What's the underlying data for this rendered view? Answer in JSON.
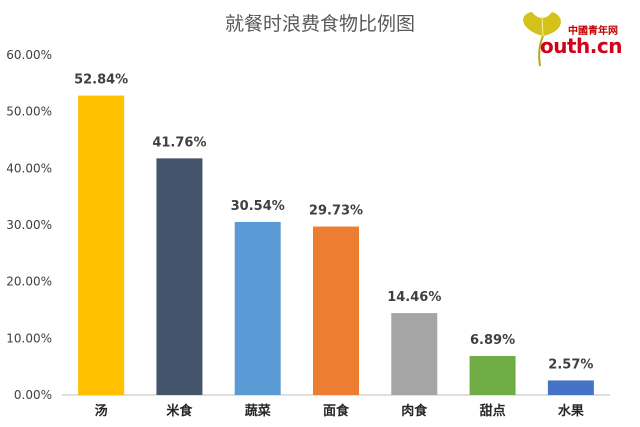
{
  "logo": {
    "cn_text": "中國青年网",
    "en_text": "outh.cn",
    "leaf_color": "#d4c21a"
  },
  "chart_data": {
    "type": "bar",
    "title": "就餐时浪费食物比例图",
    "categories": [
      "汤",
      "米食",
      "蔬菜",
      "面食",
      "肉食",
      "甜点",
      "水果"
    ],
    "values": [
      52.84,
      41.76,
      30.54,
      29.73,
      14.46,
      6.89,
      2.57
    ],
    "value_labels": [
      "52.84%",
      "41.76%",
      "30.54%",
      "29.73%",
      "14.46%",
      "6.89%",
      "2.57%"
    ],
    "colors": [
      "#ffc000",
      "#44546a",
      "#5b9bd5",
      "#ed7d31",
      "#a5a5a5",
      "#70ad47",
      "#4472c4"
    ],
    "ylim": [
      0,
      60
    ],
    "yticks": [
      "0.00%",
      "10.00%",
      "20.00%",
      "30.00%",
      "40.00%",
      "50.00%",
      "60.00%"
    ],
    "grid": false,
    "legend": "none"
  }
}
